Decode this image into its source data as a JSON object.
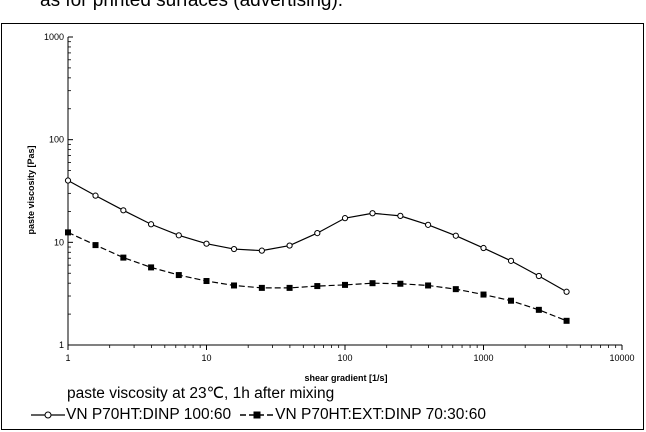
{
  "top_text": "as for printed surfaces (advertising).",
  "caption": "paste viscosity at 23℃, 1h after mixing",
  "colors": {
    "line": "#000000",
    "background": "#ffffff"
  },
  "chart_data": {
    "type": "line",
    "title": "",
    "xlabel": "shear gradient  [1/s]",
    "ylabel": "paste viscosity  [Pas]",
    "xscale": "log",
    "yscale": "log",
    "xlim": [
      1,
      10000
    ],
    "ylim": [
      1,
      1000
    ],
    "grid": false,
    "legend_position": "bottom",
    "x_ticks": [
      "1",
      "10",
      "100",
      "1000",
      "10000"
    ],
    "y_ticks": [
      "1",
      "10",
      "100",
      "1000"
    ],
    "x": [
      1,
      1.58,
      2.51,
      3.98,
      6.31,
      10,
      15.8,
      25.1,
      39.8,
      63.1,
      100,
      158,
      251,
      398,
      631,
      1000,
      1580,
      2510,
      3980
    ],
    "series": [
      {
        "name": "VN P70HT:DINP 100:60",
        "marker": "open-circle",
        "line": "solid",
        "values": [
          40,
          28.5,
          20.5,
          15,
          11.7,
          9.7,
          8.6,
          8.3,
          9.3,
          12.3,
          17.2,
          19.2,
          18.1,
          14.8,
          11.6,
          8.8,
          6.6,
          4.7,
          3.3
        ]
      },
      {
        "name": "VN P70HT:EXT:DINP  70:30:60",
        "marker": "filled-square",
        "line": "dashed",
        "values": [
          12.5,
          9.4,
          7.1,
          5.7,
          4.8,
          4.2,
          3.8,
          3.6,
          3.6,
          3.75,
          3.85,
          4.0,
          3.95,
          3.8,
          3.5,
          3.1,
          2.7,
          2.2,
          1.72
        ]
      }
    ]
  }
}
